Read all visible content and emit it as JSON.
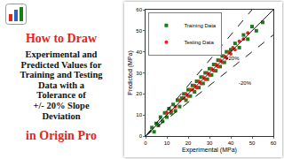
{
  "thumbnail": {
    "heading": "How to Draw",
    "body": [
      "Experimental and",
      "Predicted Values for",
      "Training and Testing",
      "Data with a",
      "Tolerance of",
      "+/- 20% Slope",
      "Deviation"
    ],
    "footer": "in Origin Pro"
  },
  "chart_data": {
    "type": "scatter",
    "x_label": "Experimental (MPa)",
    "y_label": "Predicted (MPa)",
    "xlim": [
      0,
      60
    ],
    "ylim": [
      0,
      60
    ],
    "xticks": [
      0,
      10,
      20,
      30,
      40,
      50,
      60
    ],
    "yticks": [
      0,
      10,
      20,
      30,
      40,
      50,
      60
    ],
    "grid": false,
    "legend": "upper left",
    "series": [
      {
        "name": "Training Data",
        "color": "#1c7c1c",
        "marker": "square",
        "x": [
          3,
          4,
          5,
          6,
          7,
          8,
          9,
          10,
          11,
          12,
          13,
          14,
          15,
          16,
          17,
          18,
          19,
          20,
          21,
          22,
          23,
          24,
          25,
          26,
          27,
          28,
          29,
          30,
          31,
          32,
          33,
          34,
          35,
          36,
          37,
          38,
          40,
          42,
          44,
          46,
          48,
          50,
          52,
          55
        ],
        "values": [
          4,
          2,
          6,
          5,
          9,
          7,
          11,
          9,
          13,
          11,
          15,
          12,
          17,
          14,
          18,
          20,
          17,
          22,
          19,
          24,
          21,
          26,
          23,
          28,
          25,
          30,
          27,
          32,
          29,
          34,
          31,
          36,
          33,
          38,
          35,
          40,
          41,
          44,
          42,
          48,
          46,
          52,
          50,
          54
        ]
      },
      {
        "name": "Testing Data",
        "color": "#e3261c",
        "marker": "circle",
        "x": [
          10,
          12,
          14,
          16,
          18,
          19,
          20,
          21,
          22,
          23,
          24,
          25,
          26,
          27,
          28,
          29,
          30,
          31,
          32,
          33,
          34,
          35,
          36,
          37,
          38,
          39,
          40,
          41,
          42,
          44,
          46,
          48
        ],
        "values": [
          11,
          12,
          14,
          17,
          18,
          20,
          19,
          22,
          22,
          24,
          23,
          26,
          25,
          28,
          27,
          30,
          29,
          32,
          31,
          34,
          33,
          36,
          35,
          38,
          37,
          40,
          39,
          42,
          41,
          45,
          46,
          49
        ]
      },
      {
        "type": "line",
        "color": "#000000",
        "line_style": "solid",
        "x": [
          0,
          60
        ],
        "values": [
          0,
          60
        ]
      },
      {
        "type": "line",
        "color": "#000000",
        "line_style": "dashed",
        "x": [
          0,
          50
        ],
        "values": [
          0,
          60
        ]
      },
      {
        "type": "line",
        "color": "#000000",
        "line_style": "dashed",
        "x": [
          0,
          60
        ],
        "values": [
          0,
          48
        ]
      }
    ],
    "annotations": [
      {
        "text": "+20%",
        "x": 41,
        "y": 37
      },
      {
        "text": "-20%",
        "x": 47,
        "y": 25
      }
    ]
  }
}
